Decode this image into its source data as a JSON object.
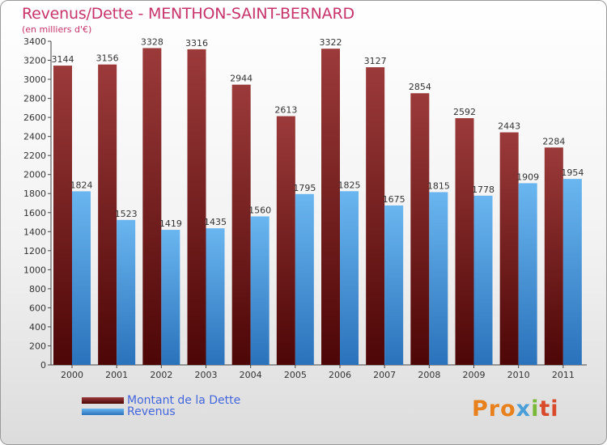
{
  "title": "Revenus/Dette - MENTHON-SAINT-BERNARD",
  "subtitle": "(en milliers d'€)",
  "colors": {
    "title": "#c8336b",
    "dette_dark": "#5a0a0a",
    "dette_light": "#9c3a3a",
    "revenus_dark": "#2a77c2",
    "revenus_light": "#6ab6f0",
    "legend_text": "#4466dd"
  },
  "logo": {
    "p1": "Pro",
    "p2": "x",
    "p3": "i",
    "p4": "ti"
  },
  "chart_data": {
    "type": "bar",
    "categories": [
      "2000",
      "2001",
      "2002",
      "2003",
      "2004",
      "2005",
      "2006",
      "2007",
      "2008",
      "2009",
      "2010",
      "2011"
    ],
    "series": [
      {
        "name": "Montant de la Dette",
        "values": [
          3144,
          3156,
          3328,
          3316,
          2944,
          2613,
          3322,
          3127,
          2854,
          2592,
          2443,
          2284
        ]
      },
      {
        "name": "Revenus",
        "values": [
          1824,
          1523,
          1419,
          1435,
          1560,
          1795,
          1825,
          1675,
          1815,
          1778,
          1909,
          1954
        ]
      }
    ],
    "yticks": [
      "0",
      "200",
      "400",
      "600",
      "800",
      "1000",
      "1200",
      "1400",
      "1600",
      "1800",
      "2000",
      "2200",
      "2400",
      "2600",
      "2800",
      "3000",
      "3200",
      "3400"
    ],
    "ylim": [
      0,
      3400
    ],
    "legend_position": "bottom-left",
    "grid": false
  }
}
